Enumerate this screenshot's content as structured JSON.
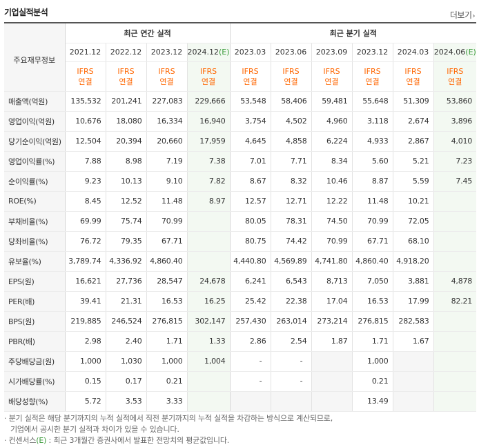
{
  "title": "기업실적분석",
  "more_label": "더보기",
  "table": {
    "stub_header": "주요재무정보",
    "annual_header": "최근 연간 실적",
    "quarterly_header": "최근 분기 실적",
    "periods": [
      "2021.12",
      "2022.12",
      "2023.12",
      "2024.12",
      "2023.03",
      "2023.06",
      "2023.09",
      "2023.12",
      "2024.03",
      "2024.06"
    ],
    "estimate_marker": "(E)",
    "ifrs_top": "IFRS",
    "ifrs_bottom": "연결",
    "rows": [
      {
        "label": "매출액(억원)",
        "values": [
          "135,532",
          "201,241",
          "227,083",
          "229,666",
          "53,548",
          "58,406",
          "59,481",
          "55,648",
          "51,309",
          "53,860"
        ]
      },
      {
        "label": "영업이익(억원)",
        "values": [
          "10,676",
          "18,080",
          "16,334",
          "16,940",
          "3,754",
          "4,502",
          "4,960",
          "3,118",
          "2,674",
          "3,896"
        ]
      },
      {
        "label": "당기순이익(억원)",
        "values": [
          "12,504",
          "20,394",
          "20,660",
          "17,959",
          "4,645",
          "4,858",
          "6,224",
          "4,933",
          "2,867",
          "4,010"
        ]
      },
      {
        "label": "영업이익률(%)",
        "values": [
          "7.88",
          "8.98",
          "7.19",
          "7.38",
          "7.01",
          "7.71",
          "8.34",
          "5.60",
          "5.21",
          "7.23"
        ]
      },
      {
        "label": "순이익률(%)",
        "values": [
          "9.23",
          "10.13",
          "9.10",
          "7.82",
          "8.67",
          "8.32",
          "10.46",
          "8.87",
          "5.59",
          "7.45"
        ]
      },
      {
        "label": "ROE(%)",
        "values": [
          "8.45",
          "12.52",
          "11.48",
          "8.97",
          "12.57",
          "12.71",
          "12.22",
          "11.48",
          "10.21",
          ""
        ]
      },
      {
        "label": "부채비율(%)",
        "values": [
          "69.99",
          "75.74",
          "70.99",
          "",
          "80.05",
          "78.31",
          "74.50",
          "70.99",
          "72.05",
          ""
        ]
      },
      {
        "label": "당좌비율(%)",
        "values": [
          "76.72",
          "79.35",
          "67.71",
          "",
          "80.75",
          "74.42",
          "70.99",
          "67.71",
          "68.10",
          ""
        ]
      },
      {
        "label": "유보율(%)",
        "values": [
          "3,789.74",
          "4,336.92",
          "4,860.40",
          "",
          "4,440.80",
          "4,569.89",
          "4,741.80",
          "4,860.40",
          "4,918.20",
          ""
        ]
      },
      {
        "label": "EPS(원)",
        "values": [
          "16,621",
          "27,736",
          "28,547",
          "24,678",
          "6,241",
          "6,543",
          "8,713",
          "7,050",
          "3,881",
          "4,878"
        ]
      },
      {
        "label": "PER(배)",
        "values": [
          "39.41",
          "21.31",
          "16.53",
          "16.25",
          "25.42",
          "22.38",
          "17.04",
          "16.53",
          "17.99",
          "82.21"
        ]
      },
      {
        "label": "BPS(원)",
        "values": [
          "219,885",
          "246,524",
          "276,815",
          "302,147",
          "257,430",
          "263,014",
          "273,214",
          "276,815",
          "282,583",
          ""
        ]
      },
      {
        "label": "PBR(배)",
        "values": [
          "2.98",
          "2.40",
          "1.71",
          "1.33",
          "2.86",
          "2.54",
          "1.87",
          "1.71",
          "1.67",
          ""
        ]
      },
      {
        "label": "주당배당금(원)",
        "values": [
          "1,000",
          "1,030",
          "1,000",
          "1,004",
          "-",
          "-",
          "",
          "1,000",
          "",
          ""
        ]
      },
      {
        "label": "시가배당률(%)",
        "values": [
          "0.15",
          "0.17",
          "0.21",
          "",
          "-",
          "-",
          "",
          "0.21",
          "",
          ""
        ]
      },
      {
        "label": "배당성향(%)",
        "values": [
          "5.72",
          "3.53",
          "3.33",
          "",
          "",
          "",
          "",
          "13.49",
          "",
          ""
        ]
      }
    ]
  },
  "notes": {
    "line1": "분기 실적은 해당 분기까지의 누적 실적에서 직전 분기까지의 누적 실적을 차감하는 방식으로 계산되므로,",
    "line2": "기업에서 공시한 분기 실적과 차이가 있을 수 있습니다.",
    "line3_prefix": "컨센서스",
    "line3_marker": "(E)",
    "line3_suffix": ": 최근 3개월간 증권사에서 발표한 전망치의 평균값입니다."
  }
}
